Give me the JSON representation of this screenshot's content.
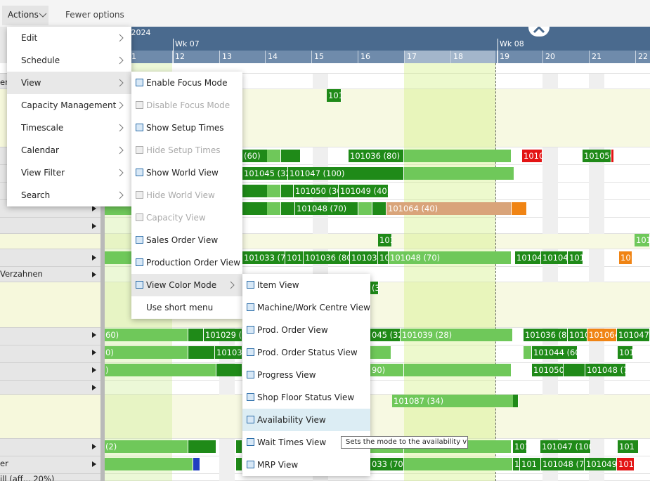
{
  "toolbar": {
    "actions": "Actions",
    "fewer_options": "Fewer options"
  },
  "timeline": {
    "month": "ry 2024",
    "weeks": [
      "Wk 07",
      "Wk 08"
    ],
    "days": [
      "1",
      "12",
      "13",
      "14",
      "15",
      "16",
      "17",
      "18",
      "19",
      "20",
      "21",
      "22"
    ]
  },
  "resources": [
    "en",
    "Verzahnen",
    "er",
    "ill (aff... 20%)"
  ],
  "bars": [
    "(60)",
    "101036 (80)",
    "1010",
    "101056",
    "101045 (32)",
    "101047 (100)",
    "101050 (30)",
    "101049 (40)",
    "101048 (70)",
    "101064 (40)",
    "101",
    "101",
    "101033 (70)",
    "101",
    "101036 (80)",
    "10103",
    "10",
    "101048 (70)",
    "10104",
    "10104",
    "1010",
    "10",
    "(3",
    "60)",
    "101029 (",
    "045 (32",
    "101039 (28)",
    "101036 (80)",
    "1010",
    "101064 (",
    "101047",
    "0)",
    "101032",
    "101044 (60)",
    "101",
    ")",
    "90)",
    "101050",
    "101048 (70)",
    "101087 (34)",
    "(2)",
    "101",
    "101047 (100)",
    "101",
    "033 (70)",
    "1",
    "101",
    "101048 (70)",
    "101049 (",
    "1010"
  ],
  "menu": {
    "items": [
      "Edit",
      "Schedule",
      "View",
      "Capacity Management",
      "Timescale",
      "Calendar",
      "View Filter",
      "Search"
    ],
    "view_submenu": [
      "Enable Focus Mode",
      "Disable Focus Mode",
      "Show Setup Times",
      "Hide Setup Times",
      "Show World View",
      "Hide World View",
      "Capacity View",
      "Sales Order View",
      "Production Order View",
      "View Color Mode",
      "Use short menu"
    ],
    "color_mode_submenu": [
      "Item View",
      "Machine/Work Centre View",
      "Prod. Order View",
      "Prod. Order Status View",
      "Progress View",
      "Shop Floor Status View",
      "Availability View",
      "Wait Times View",
      "MRP View"
    ]
  },
  "tooltip": "Sets the mode to the availability view."
}
